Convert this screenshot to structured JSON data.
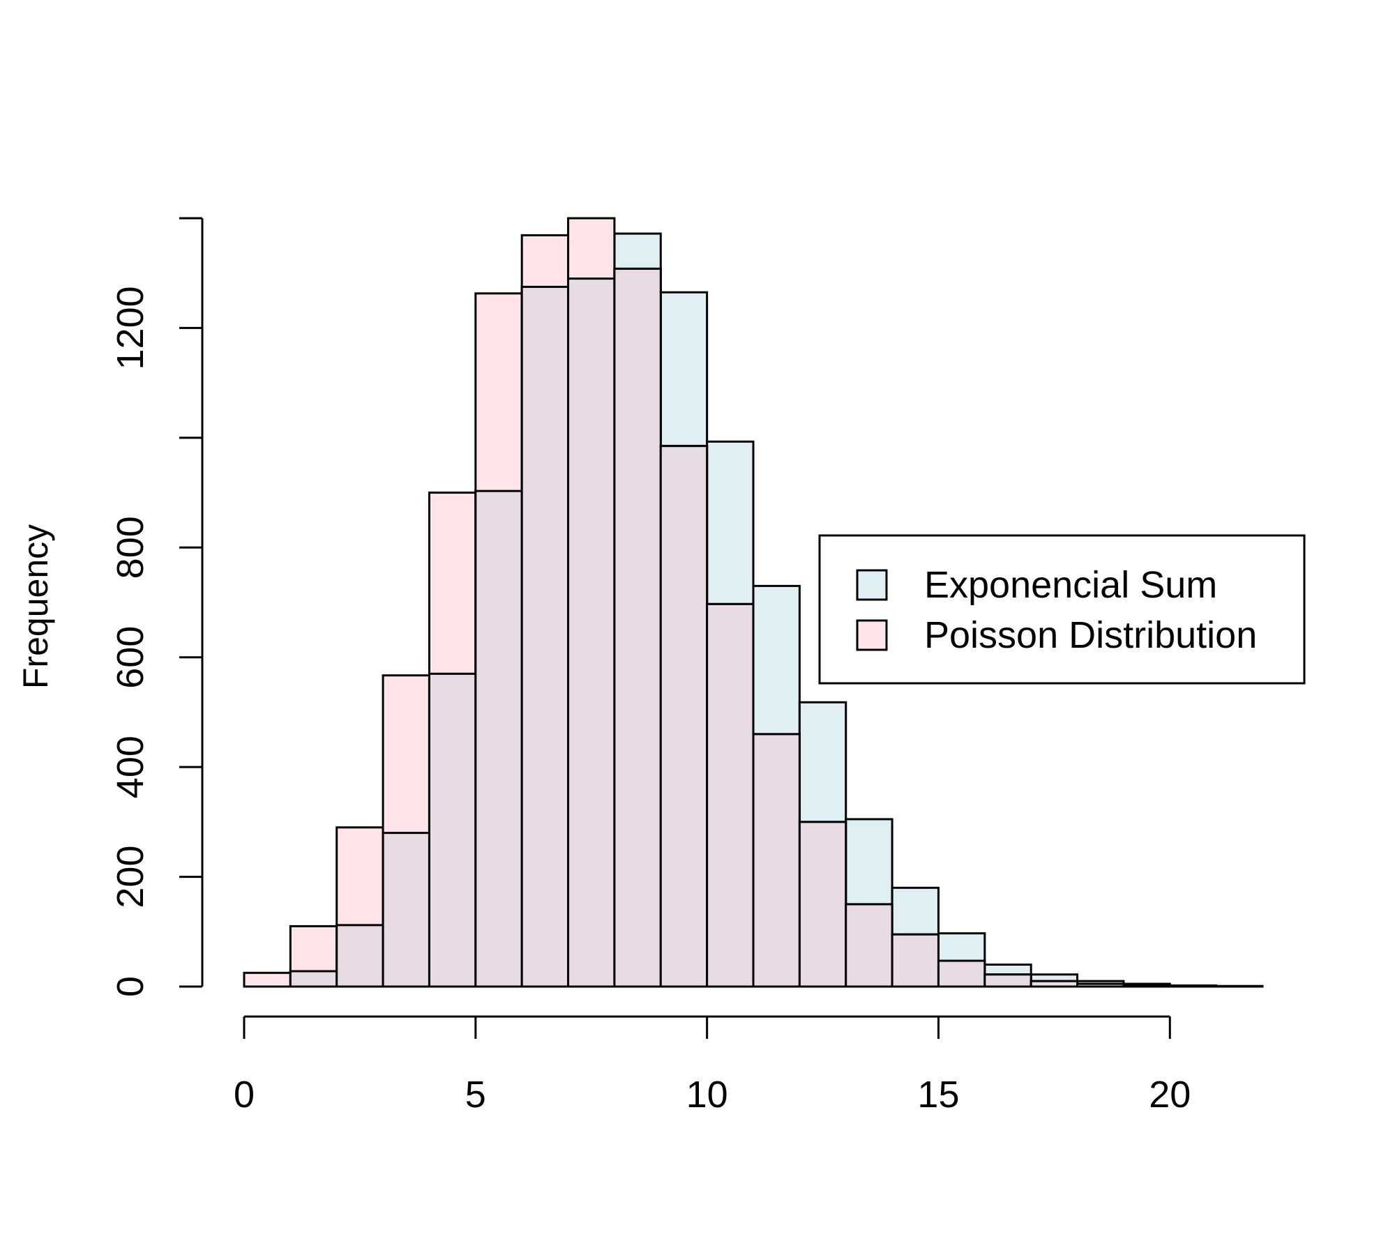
{
  "chart_data": {
    "type": "bar",
    "title": "",
    "xlabel": "",
    "ylabel": "Frequency",
    "bin_edges": [
      0,
      1,
      2,
      3,
      4,
      5,
      6,
      7,
      8,
      9,
      10,
      11,
      12,
      13,
      14,
      15,
      16,
      17,
      18,
      19,
      20,
      21,
      22
    ],
    "xlim": [
      0,
      22
    ],
    "ylim": [
      0,
      1400
    ],
    "x_ticks": [
      0,
      5,
      10,
      15,
      20
    ],
    "y_ticks": [
      0,
      200,
      400,
      600,
      800,
      1000,
      1200,
      1400
    ],
    "y_tick_labels": [
      "0",
      "200",
      "400",
      "600",
      "800",
      "",
      "1200",
      ""
    ],
    "series": [
      {
        "name": "Poisson Distribution",
        "color": "#ffe4e9",
        "values": [
          25,
          110,
          290,
          567,
          900,
          1263,
          1369,
          1400,
          1308,
          985,
          697,
          460,
          300,
          150,
          95,
          47,
          22,
          10,
          5,
          2,
          1,
          0
        ]
      },
      {
        "name": "Exponencial Sum",
        "color": "#dfeff3",
        "values": [
          0,
          28,
          112,
          280,
          570,
          903,
          1275,
          1290,
          1372,
          1265,
          993,
          730,
          518,
          305,
          180,
          97,
          40,
          22,
          10,
          5,
          2,
          1
        ]
      }
    ],
    "overlap_color": "#e8dbe3",
    "legend": {
      "position": "right",
      "entries": [
        "Exponencial Sum",
        "Poisson Distribution"
      ]
    },
    "grid": false
  }
}
